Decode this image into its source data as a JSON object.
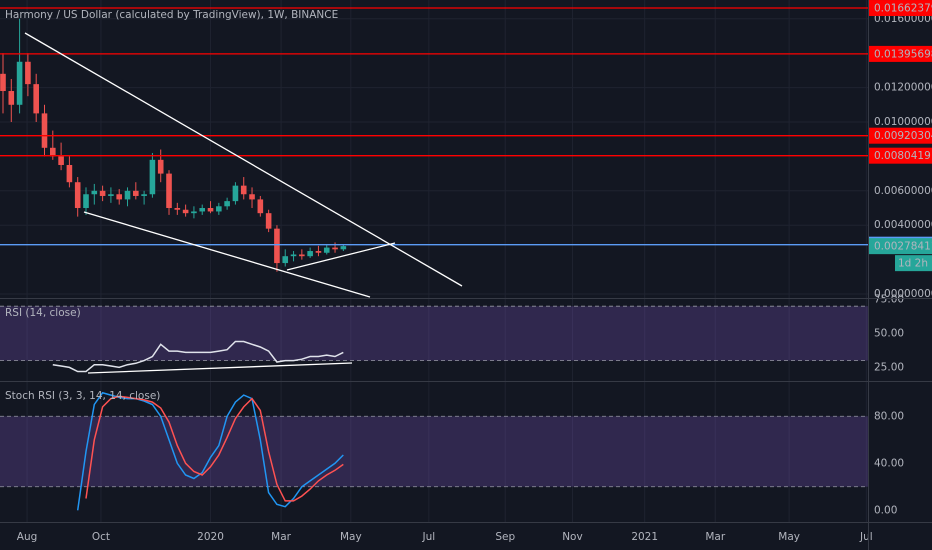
{
  "chart_data": [
    {
      "type": "candlestick",
      "title": "Harmony / US Dollar (calculated by TradingView), 1W, BINANCE",
      "up_color": "#26a69a",
      "down_color": "#ef5350",
      "open": [
        0.0128,
        0.0118,
        0.011,
        0.0135,
        0.0122,
        0.0105,
        0.0085,
        0.008,
        0.0075,
        0.0065,
        0.005,
        0.0058,
        0.006,
        0.0057,
        0.0058,
        0.0055,
        0.006,
        0.0057,
        0.0058,
        0.0078,
        0.007,
        0.005,
        0.0049,
        0.0047,
        0.0048,
        0.005,
        0.0048,
        0.0051,
        0.0054,
        0.0063,
        0.0058,
        0.0055,
        0.0047,
        0.0038,
        0.0018,
        0.0022,
        0.0023,
        0.0022,
        0.0025,
        0.0024,
        0.0027,
        0.0026
      ],
      "high": [
        0.014,
        0.0125,
        0.016,
        0.014,
        0.0128,
        0.011,
        0.0095,
        0.0088,
        0.008,
        0.0068,
        0.0062,
        0.0064,
        0.0063,
        0.0062,
        0.0061,
        0.0062,
        0.0065,
        0.006,
        0.0082,
        0.0084,
        0.0072,
        0.0053,
        0.0052,
        0.0051,
        0.0052,
        0.0054,
        0.0053,
        0.0056,
        0.0065,
        0.0068,
        0.0062,
        0.0057,
        0.0049,
        0.004,
        0.0026,
        0.0025,
        0.0026,
        0.0027,
        0.0028,
        0.0029,
        0.003,
        0.0029
      ],
      "low": [
        0.0105,
        0.01,
        0.0105,
        0.0115,
        0.01,
        0.008,
        0.0078,
        0.0072,
        0.0062,
        0.0045,
        0.0046,
        0.0052,
        0.0054,
        0.0053,
        0.0052,
        0.0051,
        0.0055,
        0.0052,
        0.0056,
        0.0065,
        0.0046,
        0.0046,
        0.0045,
        0.0044,
        0.0046,
        0.0047,
        0.0046,
        0.0049,
        0.0052,
        0.0055,
        0.005,
        0.0045,
        0.0036,
        0.0013,
        0.0016,
        0.0019,
        0.002,
        0.0021,
        0.0022,
        0.0023,
        0.0024,
        0.0025
      ],
      "close": [
        0.0118,
        0.011,
        0.0135,
        0.0122,
        0.0105,
        0.0085,
        0.008,
        0.0075,
        0.0065,
        0.005,
        0.0058,
        0.006,
        0.0057,
        0.0058,
        0.0055,
        0.006,
        0.0057,
        0.0058,
        0.0078,
        0.007,
        0.005,
        0.0049,
        0.0047,
        0.0048,
        0.005,
        0.0048,
        0.0051,
        0.0054,
        0.0063,
        0.0058,
        0.0055,
        0.0047,
        0.0038,
        0.0018,
        0.0022,
        0.0023,
        0.0022,
        0.0025,
        0.0024,
        0.0027,
        0.0026,
        0.00278411
      ],
      "ylim": [
        -0.00023,
        0.01709
      ],
      "yticks": [
        {
          "value": 0,
          "label": "0.00000000"
        },
        {
          "value": 0.004,
          "label": "0.00400000"
        },
        {
          "value": 0.006,
          "label": "0.00600000"
        },
        {
          "value": 0.01,
          "label": "0.01000000"
        },
        {
          "value": 0.012,
          "label": "0.01200000"
        },
        {
          "value": 0.016,
          "label": "0.01600000"
        }
      ],
      "levels": [
        {
          "value": 0.01662379,
          "color": "#ff0000"
        },
        {
          "value": 0.01395698,
          "color": "#ff0000"
        },
        {
          "value": 0.00920304,
          "color": "#ff0000"
        },
        {
          "value": 0.0080419,
          "color": "#ff0000"
        },
        {
          "value": 0.00286879,
          "color": "#5b9cf6"
        }
      ],
      "countdown": "1d 2h"
    },
    {
      "type": "line",
      "title": "RSI (14, close)",
      "series": [
        {
          "color": "#e0e3eb",
          "values": [
            null,
            null,
            null,
            null,
            null,
            null,
            27,
            26,
            25,
            22,
            22,
            27,
            27,
            26,
            25,
            27,
            28,
            30,
            33,
            42,
            37,
            37,
            36,
            36,
            36,
            36,
            37,
            38,
            44,
            44,
            42,
            40,
            37,
            29,
            30,
            30,
            31,
            33,
            33,
            34,
            33,
            36
          ]
        }
      ],
      "band": [
        30,
        70
      ],
      "band_color": "#7e57c2",
      "ylim": [
        15,
        76
      ],
      "yticks": [
        {
          "value": 25,
          "label": "25.00"
        },
        {
          "value": 50,
          "label": "50.00"
        },
        {
          "value": 75,
          "label": "75.00"
        }
      ]
    },
    {
      "type": "line",
      "title": "Stoch RSI (3, 3, 14, 14, close)",
      "series": [
        {
          "color": "#2196f3",
          "values": [
            null,
            null,
            null,
            null,
            null,
            null,
            null,
            null,
            null,
            0,
            50,
            90,
            100,
            98,
            96,
            95,
            95,
            93,
            90,
            80,
            60,
            40,
            30,
            27,
            32,
            45,
            55,
            80,
            92,
            98,
            95,
            60,
            15,
            5,
            3,
            10,
            20,
            25,
            30,
            35,
            40,
            47
          ]
        },
        {
          "color": "#ff5252",
          "values": [
            null,
            null,
            null,
            null,
            null,
            null,
            null,
            null,
            null,
            null,
            10,
            60,
            88,
            95,
            97,
            96,
            95,
            94,
            92,
            87,
            75,
            55,
            40,
            33,
            30,
            37,
            47,
            62,
            78,
            88,
            95,
            85,
            50,
            22,
            8,
            8,
            12,
            18,
            25,
            30,
            34,
            39
          ]
        }
      ],
      "band": [
        20,
        80
      ],
      "band_color": "#7e57c2",
      "ylim": [
        -10,
        110
      ],
      "yticks": [
        {
          "value": 0,
          "label": "0.00"
        },
        {
          "value": 40,
          "label": "40.00"
        },
        {
          "value": 80,
          "label": "80.00"
        }
      ],
      "xlim": [
        -0.36,
        104.2
      ],
      "xticks": [
        {
          "value": 2.9,
          "label": "Aug"
        },
        {
          "value": 11.8,
          "label": "Oct"
        },
        {
          "value": 25,
          "label": "2020"
        },
        {
          "value": 33.5,
          "label": "Mar"
        },
        {
          "value": 41.9,
          "label": "May"
        },
        {
          "value": 51.3,
          "label": "Jul"
        },
        {
          "value": 60.5,
          "label": "Sep"
        },
        {
          "value": 68.6,
          "label": "Nov"
        },
        {
          "value": 77.3,
          "label": "2021"
        },
        {
          "value": 85.8,
          "label": "Mar"
        },
        {
          "value": 94.7,
          "label": "May"
        },
        {
          "value": 104,
          "label": "Jul"
        }
      ]
    }
  ]
}
